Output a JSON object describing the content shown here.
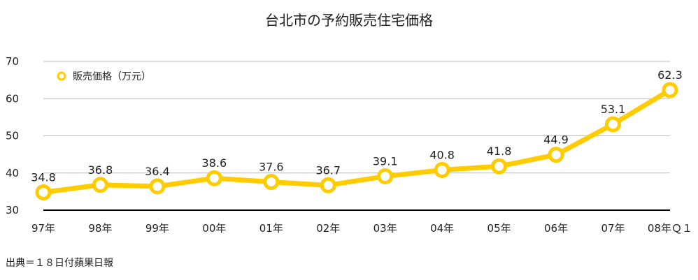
{
  "chart_data": {
    "type": "line",
    "title": "台北市の予約販売住宅価格",
    "xlabel": "",
    "ylabel": "",
    "categories": [
      "97年",
      "98年",
      "99年",
      "00年",
      "01年",
      "02年",
      "03年",
      "04年",
      "05年",
      "06年",
      "07年",
      "08年Ｑ１"
    ],
    "series": [
      {
        "name": "販売価格（万元）",
        "values": [
          34.8,
          36.8,
          36.4,
          38.6,
          37.6,
          36.7,
          39.1,
          40.8,
          41.8,
          44.9,
          53.1,
          62.3
        ],
        "color": "#FFCC00"
      }
    ],
    "data_labels": [
      "34.8",
      "36.8",
      "36.4",
      "38.6",
      "37.6",
      "36.7",
      "39.1",
      "40.8",
      "41.8",
      "44.9",
      "53.1",
      "62.3"
    ],
    "ylim": [
      30,
      70
    ],
    "yticks": [
      30,
      40,
      50,
      60,
      70
    ],
    "ytick_labels": [
      "30",
      "40",
      "50",
      "60",
      "70"
    ],
    "grid": true,
    "legend_position": "top-left",
    "source": "出典＝１８日付蘋果日報"
  },
  "colors": {
    "series": "#FFCC00",
    "marker_fill": "#FFFFFF",
    "grid": "#BBBBBB",
    "baseline": "#000000",
    "text": "#222222",
    "background": "#FFFFFF"
  }
}
